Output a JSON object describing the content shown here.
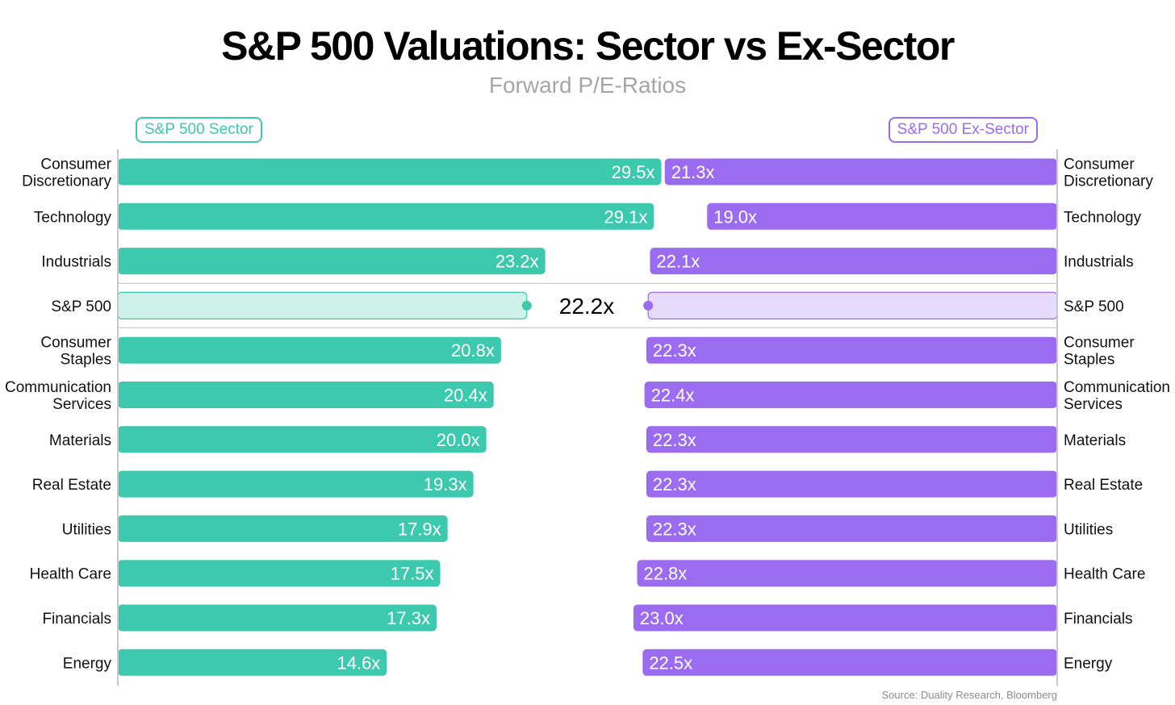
{
  "title": "S&P 500 Valuations: Sector vs Ex-Sector",
  "subtitle": "Forward P/E-Ratios",
  "source": "Source: Duality Research, Bloomberg",
  "colors": {
    "sector": "#3cc9ad",
    "sector_light": "#cef2e9",
    "ex_sector": "#9b6cf0",
    "ex_sector_light": "#e6dbfb"
  },
  "chart_data": {
    "type": "bar",
    "title": "S&P 500 Valuations: Sector vs Ex-Sector",
    "subtitle": "Forward P/E-Ratios",
    "legend": "top",
    "value_suffix": "x",
    "categories": [
      "Consumer Discretionary",
      "Technology",
      "Industrials",
      "S&P 500",
      "Consumer Staples",
      "Communication Services",
      "Materials",
      "Real Estate",
      "Utilities",
      "Health Care",
      "Financials",
      "Energy"
    ],
    "category_labels": [
      [
        "Consumer",
        "Discretionary"
      ],
      [
        "Technology"
      ],
      [
        "Industrials"
      ],
      [
        "S&P 500"
      ],
      [
        "Consumer",
        "Staples"
      ],
      [
        "Communication",
        "Services"
      ],
      [
        "Materials"
      ],
      [
        "Real Estate"
      ],
      [
        "Utilities"
      ],
      [
        "Health Care"
      ],
      [
        "Financials"
      ],
      [
        "Energy"
      ]
    ],
    "series": [
      {
        "name": "S&P 500 Sector",
        "values": [
          29.5,
          29.1,
          23.2,
          22.2,
          20.8,
          20.4,
          20.0,
          19.3,
          17.9,
          17.5,
          17.3,
          14.6
        ],
        "labels": [
          "29.5x",
          "29.1x",
          "23.2x",
          "",
          "20.8x",
          "20.4x",
          "20.0x",
          "19.3x",
          "17.9x",
          "17.5x",
          "17.3x",
          "14.6x"
        ]
      },
      {
        "name": "S&P 500 Ex-Sector",
        "values": [
          21.3,
          19.0,
          22.1,
          22.2,
          22.3,
          22.4,
          22.3,
          22.3,
          22.3,
          22.8,
          23.0,
          22.5
        ],
        "labels": [
          "21.3x",
          "19.0x",
          "22.1x",
          "",
          "22.3x",
          "22.4x",
          "22.3x",
          "22.3x",
          "22.3x",
          "22.8x",
          "23.0x",
          "22.5x"
        ]
      }
    ],
    "highlight": {
      "category": "S&P 500",
      "value": 22.2,
      "label": "22.2x"
    }
  }
}
